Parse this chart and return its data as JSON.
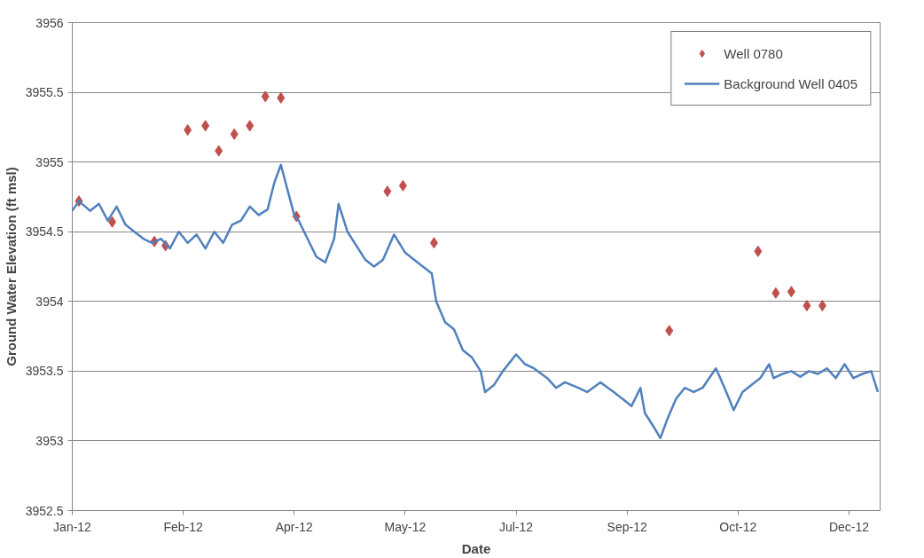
{
  "chart_data": {
    "type": "scatter",
    "xlabel": "Date",
    "ylabel": "Ground Water Elevation (ft msl)",
    "xlim": [
      "2012-01-01",
      "2012-12-30"
    ],
    "ylim": [
      3952.5,
      3956
    ],
    "xticks": [
      {
        "value": "2012-01-01",
        "label": "Jan-12"
      },
      {
        "value": "2012-02-20",
        "label": "Feb-12"
      },
      {
        "value": "2012-04-10",
        "label": "Apr-12"
      },
      {
        "value": "2012-05-30",
        "label": "May-12"
      },
      {
        "value": "2012-07-19",
        "label": "Jul-12"
      },
      {
        "value": "2012-09-07",
        "label": "Sep-12"
      },
      {
        "value": "2012-10-27",
        "label": "Oct-12"
      },
      {
        "value": "2012-12-16",
        "label": "Dec-12"
      }
    ],
    "yticks": [
      3952.5,
      3953,
      3953.5,
      3954,
      3954.5,
      3955,
      3955.5,
      3956
    ],
    "grid": "y",
    "legend": "top right",
    "series": [
      {
        "name": "Well 0780",
        "marker": "diamond",
        "color": "#c0504d",
        "x": [
          "2012-01-04",
          "2012-01-19",
          "2012-02-07",
          "2012-02-12",
          "2012-02-22",
          "2012-03-01",
          "2012-03-07",
          "2012-03-14",
          "2012-03-21",
          "2012-03-28",
          "2012-04-04",
          "2012-04-11",
          "2012-05-22",
          "2012-05-29",
          "2012-06-12",
          "2012-09-26",
          "2012-11-05",
          "2012-11-13",
          "2012-11-20",
          "2012-11-27",
          "2012-12-04"
        ],
        "values": [
          3954.72,
          3954.57,
          3954.43,
          3954.4,
          3955.23,
          3955.26,
          3955.08,
          3955.2,
          3955.26,
          3955.47,
          3955.46,
          3954.61,
          3954.79,
          3954.83,
          3954.42,
          3953.79,
          3954.36,
          3954.06,
          3954.07,
          3953.97,
          3953.97
        ]
      },
      {
        "name": "Background Well 0405",
        "type": "line",
        "marker": "none",
        "line_style": "solid",
        "color": "#4f81bd",
        "x": [
          "2012-01-01",
          "2012-01-04",
          "2012-01-09",
          "2012-01-13",
          "2012-01-17",
          "2012-01-21",
          "2012-01-25",
          "2012-01-29",
          "2012-02-02",
          "2012-02-06",
          "2012-02-10",
          "2012-02-14",
          "2012-02-18",
          "2012-02-22",
          "2012-02-26",
          "2012-03-01",
          "2012-03-05",
          "2012-03-09",
          "2012-03-13",
          "2012-03-17",
          "2012-03-21",
          "2012-03-25",
          "2012-03-29",
          "2012-04-01",
          "2012-04-04",
          "2012-04-07",
          "2012-04-10",
          "2012-04-12",
          "2012-04-16",
          "2012-04-20",
          "2012-04-24",
          "2012-04-28",
          "2012-04-30",
          "2012-05-04",
          "2012-05-08",
          "2012-05-12",
          "2012-05-16",
          "2012-05-20",
          "2012-05-25",
          "2012-05-30",
          "2012-06-03",
          "2012-06-07",
          "2012-06-11",
          "2012-06-13",
          "2012-06-17",
          "2012-06-21",
          "2012-06-25",
          "2012-06-29",
          "2012-07-03",
          "2012-07-05",
          "2012-07-09",
          "2012-07-13",
          "2012-07-19",
          "2012-07-23",
          "2012-07-27",
          "2012-08-02",
          "2012-08-06",
          "2012-08-10",
          "2012-08-16",
          "2012-08-20",
          "2012-08-26",
          "2012-09-01",
          "2012-09-05",
          "2012-09-09",
          "2012-09-13",
          "2012-09-15",
          "2012-09-19",
          "2012-09-22",
          "2012-09-25",
          "2012-09-29",
          "2012-10-03",
          "2012-10-07",
          "2012-10-11",
          "2012-10-17",
          "2012-10-19",
          "2012-10-23",
          "2012-10-25",
          "2012-10-29",
          "2012-11-02",
          "2012-11-06",
          "2012-11-10",
          "2012-11-12",
          "2012-11-16",
          "2012-11-20",
          "2012-11-24",
          "2012-11-28",
          "2012-12-02",
          "2012-12-06",
          "2012-12-10",
          "2012-12-14",
          "2012-12-18",
          "2012-12-22",
          "2012-12-26",
          "2012-12-29"
        ],
        "values": [
          3954.65,
          3954.72,
          3954.65,
          3954.7,
          3954.58,
          3954.68,
          3954.55,
          3954.5,
          3954.45,
          3954.42,
          3954.45,
          3954.38,
          3954.5,
          3954.42,
          3954.48,
          3954.38,
          3954.5,
          3954.42,
          3954.55,
          3954.58,
          3954.68,
          3954.62,
          3954.66,
          3954.85,
          3954.98,
          3954.8,
          3954.62,
          3954.58,
          3954.45,
          3954.32,
          3954.28,
          3954.45,
          3954.7,
          3954.5,
          3954.4,
          3954.3,
          3954.25,
          3954.3,
          3954.48,
          3954.35,
          3954.3,
          3954.25,
          3954.2,
          3954.0,
          3953.85,
          3953.8,
          3953.65,
          3953.6,
          3953.5,
          3953.35,
          3953.4,
          3953.5,
          3953.62,
          3953.55,
          3953.52,
          3953.45,
          3953.38,
          3953.42,
          3953.38,
          3953.35,
          3953.42,
          3953.35,
          3953.3,
          3953.25,
          3953.38,
          3953.2,
          3953.1,
          3953.02,
          3953.15,
          3953.3,
          3953.38,
          3953.35,
          3953.38,
          3953.52,
          3953.45,
          3953.3,
          3953.22,
          3953.35,
          3953.4,
          3953.45,
          3953.55,
          3953.45,
          3953.48,
          3953.5,
          3953.46,
          3953.5,
          3953.48,
          3953.52,
          3953.45,
          3953.55,
          3953.45,
          3953.48,
          3953.5,
          3953.35
        ]
      }
    ]
  }
}
